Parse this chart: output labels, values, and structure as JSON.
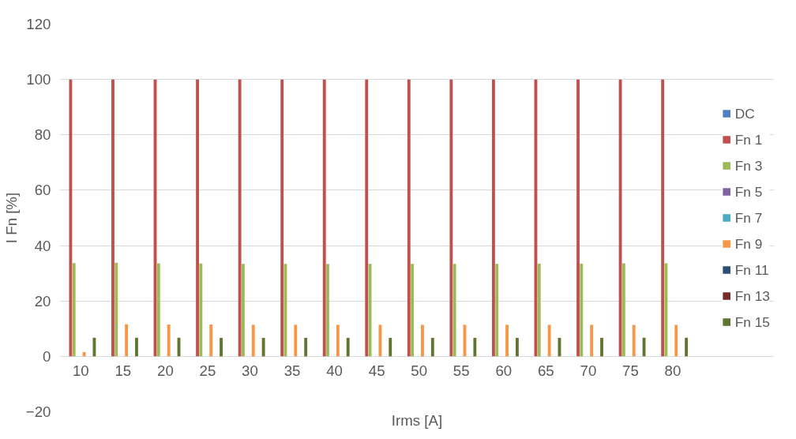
{
  "chart_data": {
    "type": "bar",
    "xlabel": "Irms [A]",
    "ylabel": "I Fn [%]",
    "categories": [
      "10",
      "15",
      "20",
      "25",
      "30",
      "35",
      "40",
      "45",
      "50",
      "55",
      "60",
      "65",
      "70",
      "75",
      "80"
    ],
    "series": [
      {
        "name": "DC",
        "color": "#4f81bd",
        "values": [
          0,
          0,
          0,
          0,
          0,
          0,
          0,
          0,
          0,
          0,
          0,
          0,
          0,
          0,
          0
        ]
      },
      {
        "name": "Fn 1",
        "color": "#c0504d",
        "values": [
          100,
          100,
          100,
          100,
          100,
          100,
          100,
          100,
          100,
          100,
          100,
          100,
          100,
          100,
          100
        ]
      },
      {
        "name": "Fn 3",
        "color": "#9bbb59",
        "values": [
          33.7,
          33.8,
          33.6,
          33.5,
          33.4,
          33.4,
          33.4,
          33.4,
          33.4,
          33.4,
          33.4,
          33.5,
          33.5,
          33.6,
          33.6
        ]
      },
      {
        "name": "Fn 5",
        "color": "#8064a2",
        "values": [
          0,
          0,
          0,
          0,
          0,
          0,
          0,
          0,
          0,
          0,
          0,
          0,
          0,
          0,
          0
        ]
      },
      {
        "name": "Fn 7",
        "color": "#4bacc6",
        "values": [
          0,
          0,
          0,
          0,
          0,
          0,
          0,
          0,
          0,
          0,
          0,
          0,
          0,
          0,
          0
        ]
      },
      {
        "name": "Fn 9",
        "color": "#f79646",
        "values": [
          1.5,
          11.6,
          11.5,
          11.5,
          11.4,
          11.4,
          11.4,
          11.4,
          11.4,
          11.4,
          11.4,
          11.4,
          11.4,
          11.4,
          11.4
        ]
      },
      {
        "name": "Fn 11",
        "color": "#2c4d75",
        "values": [
          0,
          0,
          0,
          0,
          0,
          0,
          0,
          0,
          0,
          0,
          0,
          0,
          0,
          0,
          0
        ]
      },
      {
        "name": "Fn 13",
        "color": "#772c2a",
        "values": [
          0,
          0,
          0,
          0,
          0,
          0,
          0,
          0,
          0,
          0,
          0,
          0,
          0,
          0,
          0
        ]
      },
      {
        "name": "Fn 15",
        "color": "#5f7530",
        "values": [
          6.7,
          6.7,
          6.7,
          6.7,
          6.7,
          6.7,
          6.7,
          6.7,
          6.7,
          6.7,
          6.7,
          6.7,
          6.7,
          6.7,
          6.7
        ]
      }
    ],
    "ylim": [
      -20,
      120
    ],
    "yticks": [
      -20,
      0,
      20,
      40,
      60,
      80,
      100,
      120
    ],
    "grid": "y",
    "legend": "right"
  }
}
